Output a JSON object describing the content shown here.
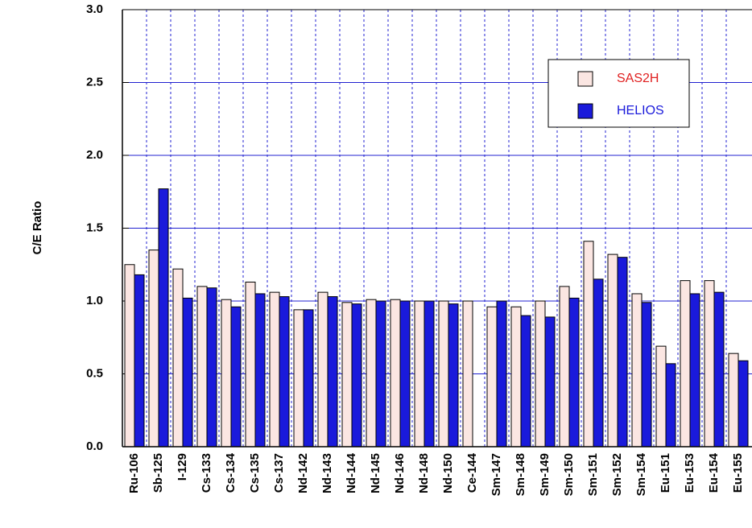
{
  "chart_data": {
    "type": "bar",
    "y_label": "C/E Ratio",
    "categories": [
      "Ru-106",
      "Sb-125",
      "I-129",
      "Cs-133",
      "Cs-134",
      "Cs-135",
      "Cs-137",
      "Nd-142",
      "Nd-143",
      "Nd-144",
      "Nd-145",
      "Nd-146",
      "Nd-148",
      "Nd-150",
      "Ce-144",
      "Sm-147",
      "Sm-148",
      "Sm-149",
      "Sm-150",
      "Sm-151",
      "Sm-152",
      "Sm-154",
      "Eu-151",
      "Eu-153",
      "Eu-154",
      "Eu-155"
    ],
    "series": [
      {
        "name": "SAS2H",
        "color": "#fbe6e2",
        "label_color": "#e02020",
        "values": [
          1.25,
          1.35,
          1.22,
          1.1,
          1.01,
          1.13,
          1.06,
          0.94,
          1.06,
          0.99,
          1.01,
          1.01,
          1.0,
          1.0,
          1.0,
          0.96,
          0.96,
          1.0,
          1.1,
          1.41,
          1.32,
          1.05,
          0.69,
          1.14,
          1.14,
          0.64
        ]
      },
      {
        "name": "HELIOS",
        "color": "#1a1adb",
        "label_color": "#1a1adb",
        "values": [
          1.18,
          1.77,
          1.02,
          1.09,
          0.96,
          1.05,
          1.03,
          0.94,
          1.03,
          0.98,
          1.0,
          1.0,
          1.0,
          0.98,
          null,
          1.0,
          0.9,
          0.89,
          1.02,
          1.15,
          1.3,
          0.99,
          0.57,
          1.05,
          1.06,
          0.59
        ]
      }
    ],
    "ylim": [
      0,
      3
    ],
    "yticks": [
      {
        "value": 0,
        "label": "0.0"
      },
      0.5,
      {
        "value": 1,
        "label": "1.0"
      },
      1.5,
      {
        "value": 2,
        "label": "2.0"
      },
      2.5,
      {
        "value": 3,
        "label": "3.0"
      }
    ],
    "grid": true,
    "grid_color": "#2020d0",
    "legend": "upper right"
  }
}
